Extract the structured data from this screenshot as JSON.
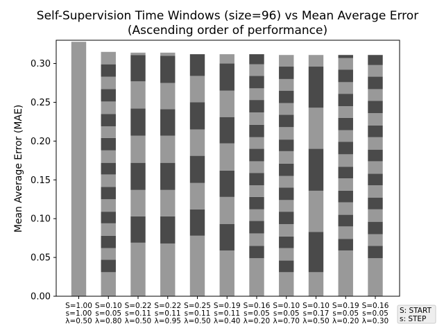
{
  "chart_data": {
    "type": "bar",
    "stacked": true,
    "title": "Self-Supervision Time Windows (size=96) vs Mean Average Error",
    "subtitle": "(Ascending order of performance)",
    "xlabel": "",
    "ylabel": "Mean Average Error (MAE)",
    "ylim": [
      0,
      0.33
    ],
    "yticks": [
      "0.00",
      "0.05",
      "0.10",
      "0.15",
      "0.20",
      "0.25",
      "0.30"
    ],
    "grid": false,
    "colors": {
      "light": "#999999",
      "dark": "#4a4a4a",
      "axis": "#000000"
    },
    "categories": [
      [
        "S=1.00",
        "s=1.00",
        "λ=0.50"
      ],
      [
        "S=0.10",
        "s=0.05",
        "λ=0.80"
      ],
      [
        "S=0.22",
        "s=0.11",
        "λ=0.50"
      ],
      [
        "S=0.22",
        "s=0.11",
        "λ=0.95"
      ],
      [
        "S=0.25",
        "s=0.11",
        "λ=0.50"
      ],
      [
        "S=0.19",
        "s=0.11",
        "λ=0.40"
      ],
      [
        "S=0.16",
        "s=0.05",
        "λ=0.20"
      ],
      [
        "S=0.10",
        "s=0.05",
        "λ=0.70"
      ],
      [
        "S=0.10",
        "s=0.17",
        "λ=0.50"
      ],
      [
        "S=0.19",
        "s=0.05",
        "λ=0.20"
      ],
      [
        "S=0.16",
        "s=0.05",
        "λ=0.30"
      ]
    ],
    "segments": [
      [
        0,
        0.328
      ],
      [
        0,
        0.031,
        0.047,
        0.062,
        0.078,
        0.094,
        0.109,
        0.125,
        0.141,
        0.157,
        0.172,
        0.188,
        0.204,
        0.219,
        0.235,
        0.251,
        0.267,
        0.283,
        0.299,
        0.315
      ],
      [
        0,
        0.069,
        0.103,
        0.137,
        0.172,
        0.207,
        0.242,
        0.277,
        0.311,
        0.314
      ],
      [
        0,
        0.068,
        0.103,
        0.137,
        0.172,
        0.207,
        0.241,
        0.275,
        0.31,
        0.314
      ],
      [
        0,
        0.078,
        0.112,
        0.146,
        0.181,
        0.215,
        0.25,
        0.284,
        0.312
      ],
      [
        0,
        0.059,
        0.093,
        0.128,
        0.162,
        0.197,
        0.231,
        0.265,
        0.3,
        0.312
      ],
      [
        0,
        0.049,
        0.065,
        0.081,
        0.097,
        0.112,
        0.128,
        0.143,
        0.159,
        0.174,
        0.19,
        0.205,
        0.221,
        0.237,
        0.253,
        0.268,
        0.284,
        0.299,
        0.312
      ],
      [
        0,
        0.031,
        0.046,
        0.062,
        0.077,
        0.093,
        0.109,
        0.124,
        0.14,
        0.155,
        0.171,
        0.187,
        0.202,
        0.218,
        0.234,
        0.249,
        0.265,
        0.28,
        0.296,
        0.311
      ],
      [
        0,
        0.031,
        0.083,
        0.136,
        0.19,
        0.243,
        0.296,
        0.311
      ],
      [
        0,
        0.059,
        0.074,
        0.09,
        0.105,
        0.121,
        0.136,
        0.152,
        0.167,
        0.183,
        0.199,
        0.214,
        0.23,
        0.245,
        0.261,
        0.276,
        0.292,
        0.307,
        0.311
      ],
      [
        0,
        0.049,
        0.065,
        0.08,
        0.096,
        0.112,
        0.127,
        0.143,
        0.158,
        0.174,
        0.189,
        0.205,
        0.22,
        0.236,
        0.252,
        0.267,
        0.283,
        0.298,
        0.311
      ]
    ],
    "totals": [
      0.328,
      0.315,
      0.314,
      0.314,
      0.312,
      0.312,
      0.312,
      0.311,
      0.311,
      0.311,
      0.311
    ],
    "legend": {
      "entries": [
        "S: START",
        "s: STEP"
      ],
      "placement": "bottom-right"
    }
  }
}
